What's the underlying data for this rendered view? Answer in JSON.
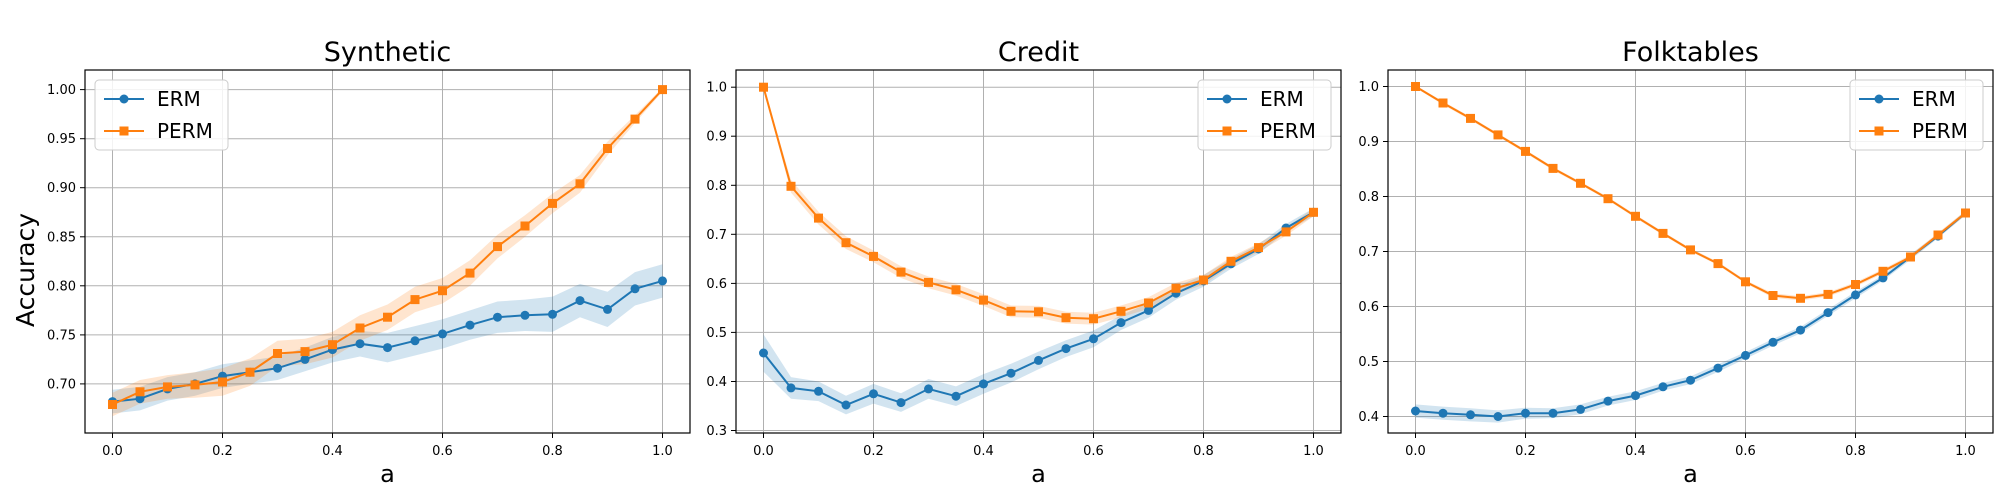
{
  "figure": {
    "ylabel": "Accuracy"
  },
  "chart_data": [
    {
      "type": "line",
      "title": "Synthetic",
      "xlabel": "a",
      "ylabel": "Accuracy",
      "xlim": [
        -0.05,
        1.05
      ],
      "ylim": [
        0.65,
        1.02
      ],
      "xticks": [
        0.0,
        0.2,
        0.4,
        0.6,
        0.8,
        1.0
      ],
      "xtick_labels": [
        "0.0",
        "0.2",
        "0.4",
        "0.6",
        "0.8",
        "1.0"
      ],
      "yticks": [
        0.7,
        0.75,
        0.8,
        0.85,
        0.9,
        0.95,
        1.0
      ],
      "ytick_labels": [
        "0.70",
        "0.75",
        "0.80",
        "0.85",
        "0.90",
        "0.95",
        "1.00"
      ],
      "grid": true,
      "legend_position": "upper-left",
      "x": [
        0.0,
        0.05,
        0.1,
        0.15,
        0.2,
        0.25,
        0.3,
        0.35,
        0.4,
        0.45,
        0.5,
        0.55,
        0.6,
        0.65,
        0.7,
        0.75,
        0.8,
        0.85,
        0.9,
        0.95,
        1.0
      ],
      "series": [
        {
          "name": "ERM",
          "color": "#1f77b4",
          "marker": "circle",
          "values": [
            0.682,
            0.685,
            0.695,
            0.7,
            0.708,
            0.712,
            0.716,
            0.725,
            0.735,
            0.741,
            0.737,
            0.744,
            0.751,
            0.76,
            0.768,
            0.77,
            0.771,
            0.785,
            0.776,
            0.797,
            0.805
          ],
          "lower": [
            0.67,
            0.673,
            0.683,
            0.688,
            0.696,
            0.7,
            0.704,
            0.713,
            0.722,
            0.728,
            0.722,
            0.729,
            0.736,
            0.745,
            0.752,
            0.754,
            0.753,
            0.768,
            0.758,
            0.78,
            0.788
          ],
          "upper": [
            0.694,
            0.697,
            0.707,
            0.712,
            0.72,
            0.724,
            0.728,
            0.737,
            0.748,
            0.754,
            0.752,
            0.759,
            0.766,
            0.775,
            0.784,
            0.786,
            0.789,
            0.802,
            0.794,
            0.814,
            0.822
          ]
        },
        {
          "name": "PERM",
          "color": "#ff7f0e",
          "marker": "square",
          "values": [
            0.679,
            0.692,
            0.697,
            0.699,
            0.702,
            0.712,
            0.731,
            0.733,
            0.74,
            0.757,
            0.768,
            0.786,
            0.795,
            0.813,
            0.84,
            0.861,
            0.884,
            0.904,
            0.94,
            0.97,
            1.0
          ],
          "lower": [
            0.667,
            0.68,
            0.685,
            0.686,
            0.688,
            0.698,
            0.718,
            0.72,
            0.727,
            0.744,
            0.755,
            0.773,
            0.782,
            0.8,
            0.828,
            0.85,
            0.874,
            0.895,
            0.933,
            0.966,
            0.998
          ],
          "upper": [
            0.691,
            0.704,
            0.709,
            0.712,
            0.716,
            0.726,
            0.744,
            0.746,
            0.753,
            0.77,
            0.781,
            0.799,
            0.808,
            0.826,
            0.852,
            0.872,
            0.894,
            0.913,
            0.947,
            0.974,
            1.002
          ]
        }
      ]
    },
    {
      "type": "line",
      "title": "Credit",
      "xlabel": "a",
      "ylabel": "",
      "xlim": [
        -0.05,
        1.05
      ],
      "ylim": [
        0.295,
        1.035
      ],
      "xticks": [
        0.0,
        0.2,
        0.4,
        0.6,
        0.8,
        1.0
      ],
      "xtick_labels": [
        "0.0",
        "0.2",
        "0.4",
        "0.6",
        "0.8",
        "1.0"
      ],
      "yticks": [
        0.3,
        0.4,
        0.5,
        0.6,
        0.7,
        0.8,
        0.9,
        1.0
      ],
      "ytick_labels": [
        "0.3",
        "0.4",
        "0.5",
        "0.6",
        "0.7",
        "0.8",
        "0.9",
        "1.0"
      ],
      "grid": true,
      "legend_position": "upper-right",
      "x": [
        0.0,
        0.05,
        0.1,
        0.15,
        0.2,
        0.25,
        0.3,
        0.35,
        0.4,
        0.45,
        0.5,
        0.55,
        0.6,
        0.65,
        0.7,
        0.75,
        0.8,
        0.85,
        0.9,
        0.95,
        1.0
      ],
      "series": [
        {
          "name": "ERM",
          "color": "#1f77b4",
          "marker": "circle",
          "values": [
            0.458,
            0.387,
            0.38,
            0.352,
            0.375,
            0.357,
            0.385,
            0.37,
            0.395,
            0.417,
            0.443,
            0.467,
            0.487,
            0.52,
            0.545,
            0.58,
            0.605,
            0.64,
            0.67,
            0.713,
            0.745
          ],
          "lower": [
            0.42,
            0.365,
            0.36,
            0.333,
            0.355,
            0.338,
            0.365,
            0.35,
            0.375,
            0.398,
            0.425,
            0.45,
            0.47,
            0.505,
            0.53,
            0.567,
            0.593,
            0.63,
            0.66,
            0.705,
            0.737
          ],
          "upper": [
            0.496,
            0.409,
            0.4,
            0.371,
            0.395,
            0.376,
            0.405,
            0.39,
            0.415,
            0.436,
            0.461,
            0.484,
            0.504,
            0.535,
            0.56,
            0.593,
            0.617,
            0.65,
            0.68,
            0.721,
            0.753
          ]
        },
        {
          "name": "PERM",
          "color": "#ff7f0e",
          "marker": "square",
          "values": [
            1.0,
            0.798,
            0.733,
            0.683,
            0.655,
            0.623,
            0.602,
            0.587,
            0.566,
            0.543,
            0.542,
            0.53,
            0.528,
            0.543,
            0.56,
            0.59,
            0.607,
            0.645,
            0.673,
            0.705,
            0.745
          ],
          "lower": [
            0.998,
            0.785,
            0.72,
            0.67,
            0.643,
            0.611,
            0.59,
            0.575,
            0.554,
            0.531,
            0.53,
            0.518,
            0.516,
            0.531,
            0.548,
            0.579,
            0.597,
            0.636,
            0.664,
            0.697,
            0.737
          ],
          "upper": [
            1.002,
            0.811,
            0.746,
            0.696,
            0.667,
            0.635,
            0.614,
            0.599,
            0.578,
            0.555,
            0.554,
            0.542,
            0.54,
            0.555,
            0.572,
            0.601,
            0.617,
            0.654,
            0.682,
            0.713,
            0.753
          ]
        }
      ]
    },
    {
      "type": "line",
      "title": "Folktables",
      "xlabel": "a",
      "ylabel": "",
      "xlim": [
        -0.05,
        1.05
      ],
      "ylim": [
        0.37,
        1.03
      ],
      "xticks": [
        0.0,
        0.2,
        0.4,
        0.6,
        0.8,
        1.0
      ],
      "xtick_labels": [
        "0.0",
        "0.2",
        "0.4",
        "0.6",
        "0.8",
        "1.0"
      ],
      "yticks": [
        0.4,
        0.5,
        0.6,
        0.7,
        0.8,
        0.9,
        1.0
      ],
      "ytick_labels": [
        "0.4",
        "0.5",
        "0.6",
        "0.7",
        "0.8",
        "0.9",
        "1.0"
      ],
      "grid": true,
      "legend_position": "upper-right",
      "x": [
        0.0,
        0.05,
        0.1,
        0.15,
        0.2,
        0.25,
        0.3,
        0.35,
        0.4,
        0.45,
        0.5,
        0.55,
        0.6,
        0.65,
        0.7,
        0.75,
        0.8,
        0.85,
        0.9,
        0.95,
        1.0
      ],
      "series": [
        {
          "name": "ERM",
          "color": "#1f77b4",
          "marker": "circle",
          "values": [
            0.41,
            0.406,
            0.403,
            0.4,
            0.406,
            0.406,
            0.413,
            0.428,
            0.438,
            0.454,
            0.466,
            0.488,
            0.511,
            0.535,
            0.557,
            0.589,
            0.621,
            0.652,
            0.69,
            0.728,
            0.77
          ],
          "lower": [
            0.398,
            0.394,
            0.391,
            0.389,
            0.396,
            0.397,
            0.404,
            0.42,
            0.43,
            0.447,
            0.459,
            0.481,
            0.505,
            0.529,
            0.551,
            0.583,
            0.615,
            0.647,
            0.685,
            0.724,
            0.766
          ],
          "upper": [
            0.422,
            0.418,
            0.415,
            0.411,
            0.416,
            0.415,
            0.422,
            0.436,
            0.446,
            0.461,
            0.473,
            0.495,
            0.517,
            0.541,
            0.563,
            0.595,
            0.627,
            0.657,
            0.695,
            0.732,
            0.774
          ]
        },
        {
          "name": "PERM",
          "color": "#ff7f0e",
          "marker": "square",
          "values": [
            1.0,
            0.97,
            0.942,
            0.912,
            0.882,
            0.851,
            0.824,
            0.796,
            0.764,
            0.733,
            0.703,
            0.678,
            0.645,
            0.62,
            0.615,
            0.622,
            0.64,
            0.664,
            0.69,
            0.73,
            0.77
          ],
          "lower": [
            0.998,
            0.967,
            0.939,
            0.909,
            0.879,
            0.848,
            0.821,
            0.793,
            0.761,
            0.73,
            0.7,
            0.675,
            0.642,
            0.616,
            0.611,
            0.618,
            0.636,
            0.66,
            0.686,
            0.726,
            0.766
          ],
          "upper": [
            1.002,
            0.973,
            0.945,
            0.915,
            0.885,
            0.854,
            0.827,
            0.799,
            0.767,
            0.736,
            0.706,
            0.681,
            0.648,
            0.624,
            0.619,
            0.626,
            0.644,
            0.668,
            0.694,
            0.734,
            0.774
          ]
        }
      ]
    }
  ]
}
